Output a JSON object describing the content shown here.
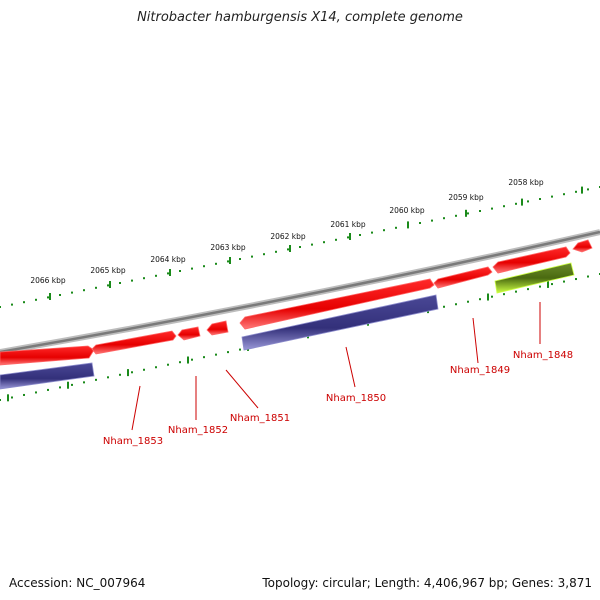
{
  "title": "Nitrobacter hamburgensis X14, complete genome",
  "footer": {
    "accession": "Accession: NC_007964",
    "topology": "Topology: circular; Length: 4,406,967 bp; Genes: 3,871"
  },
  "colors": {
    "backbone": "#8a8a8a",
    "gene_forward": "#ee1111",
    "gene_forward_edge": "#ff6666",
    "cds": "#3c3a8a",
    "cds_edge": "#8c8ccc",
    "rna": "#5a7a1a",
    "rna_edge": "#ccff44",
    "tick": "#1a8a1a",
    "label": "#cc0000"
  },
  "ticks": [
    "2058 kbp",
    "2059 kbp",
    "2060 kbp",
    "2061 kbp",
    "2062 kbp",
    "2063 kbp",
    "2064 kbp",
    "2065 kbp",
    "2066 kbp"
  ],
  "genes": [
    "Nham_1848",
    "Nham_1849",
    "Nham_1850",
    "Nham_1851",
    "Nham_1852",
    "Nham_1853"
  ]
}
